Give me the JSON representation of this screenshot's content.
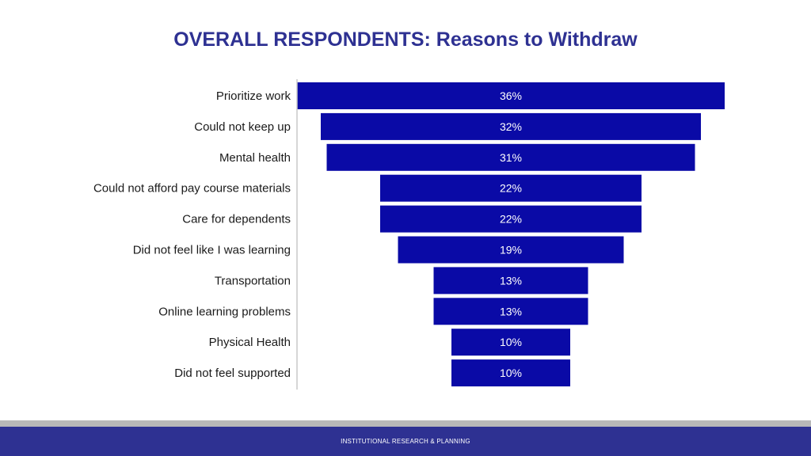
{
  "colors": {
    "bar": "#0a0aa6",
    "title": "#2e3192",
    "footer": "#2e3192",
    "stripe": "#b8b8b8"
  },
  "footer": {
    "text": "INSTITUTIONAL RESEARCH & PLANNING"
  },
  "chart_data": {
    "type": "bar",
    "orientation": "horizontal-funnel",
    "title": "OVERALL RESPONDENTS: Reasons to Withdraw",
    "categories": [
      "Prioritize work",
      "Could not keep up",
      "Mental health",
      "Could not afford pay course materials",
      "Care for dependents",
      "Did not feel like I was learning",
      "Transportation",
      "Online learning problems",
      "Physical Health",
      "Did not feel supported"
    ],
    "values": [
      36,
      32,
      31,
      22,
      22,
      19,
      13,
      13,
      10,
      10
    ],
    "value_labels": [
      "36%",
      "32%",
      "31%",
      "22%",
      "22%",
      "19%",
      "13%",
      "13%",
      "10%",
      "10%"
    ],
    "unit": "%",
    "grid": false,
    "legend": "none"
  }
}
